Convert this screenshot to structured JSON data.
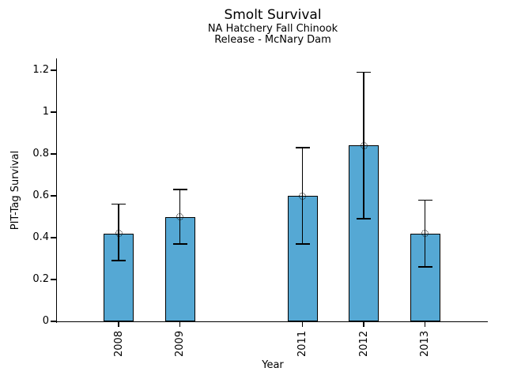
{
  "chart_data": {
    "type": "bar",
    "title": "Smolt Survival",
    "subtitle_lines": [
      "NA Hatchery Fall Chinook",
      "Release - McNary Dam"
    ],
    "xlabel": "Year",
    "ylabel": "PIT-Tag Survival",
    "categories": [
      "2008",
      "2009",
      "2011",
      "2012",
      "2013"
    ],
    "x_years": [
      2008,
      2009,
      2011,
      2012,
      2013
    ],
    "values": [
      0.42,
      0.5,
      0.6,
      0.84,
      0.42
    ],
    "error_low": [
      0.29,
      0.37,
      0.37,
      0.49,
      0.26
    ],
    "error_high": [
      0.56,
      0.63,
      0.83,
      1.19,
      0.58
    ],
    "ytick_labels": [
      "0",
      "0.2",
      "0.4",
      "0.6",
      "0.8",
      "1",
      "1.2"
    ],
    "ytick_values": [
      0,
      0.2,
      0.4,
      0.6,
      0.8,
      1.0,
      1.2
    ],
    "ylim": [
      0,
      1.25
    ],
    "missing_years": [
      2010
    ],
    "bar_color": "#55a8d4",
    "bar_edge_color": "#000000",
    "error_color": "#000000",
    "marker": "open-circle",
    "grid": false,
    "legend": "none"
  }
}
